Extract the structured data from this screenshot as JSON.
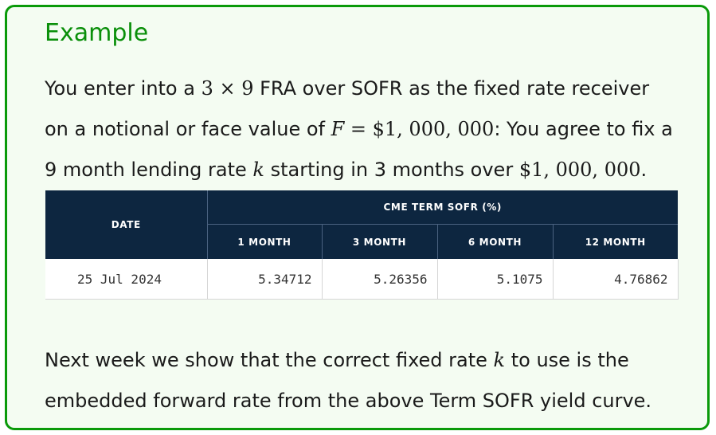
{
  "example": {
    "title": "Example",
    "intro": {
      "line1_a": "You enter into a ",
      "line1_math": "3 × 9",
      "line1_b": " FRA over SOFR as the fixed rate receiver",
      "line2_a": "on a notional or face value of ",
      "line2_var": "F",
      "line2_math": " = $1, 000, 000",
      "line2_b": ": You agree to fix a",
      "line3_a": "9 month lending rate ",
      "line3_var": "k",
      "line3_b": " starting in 3 months over ",
      "line3_math": "$1, 000, 000",
      "line3_c": "."
    },
    "outro": {
      "line1_a": "Next week we show that the correct fixed rate ",
      "line1_var": "k",
      "line1_b": " to use is the",
      "line2": "embedded forward rate from the above Term SOFR yield curve."
    }
  },
  "table": {
    "date_header": "DATE",
    "group_header": "CME TERM SOFR (%)",
    "columns": [
      "1 MONTH",
      "3 MONTH",
      "6 MONTH",
      "12 MONTH"
    ],
    "rows": [
      {
        "date": "25 Jul 2024",
        "values": [
          "5.34712",
          "5.26356",
          "5.1075",
          "4.76862"
        ]
      }
    ]
  },
  "colors": {
    "border": "#0a9a0a",
    "title": "#0a8f0a",
    "card_bg": "#f4fcf2",
    "table_header": "#0d2640"
  }
}
